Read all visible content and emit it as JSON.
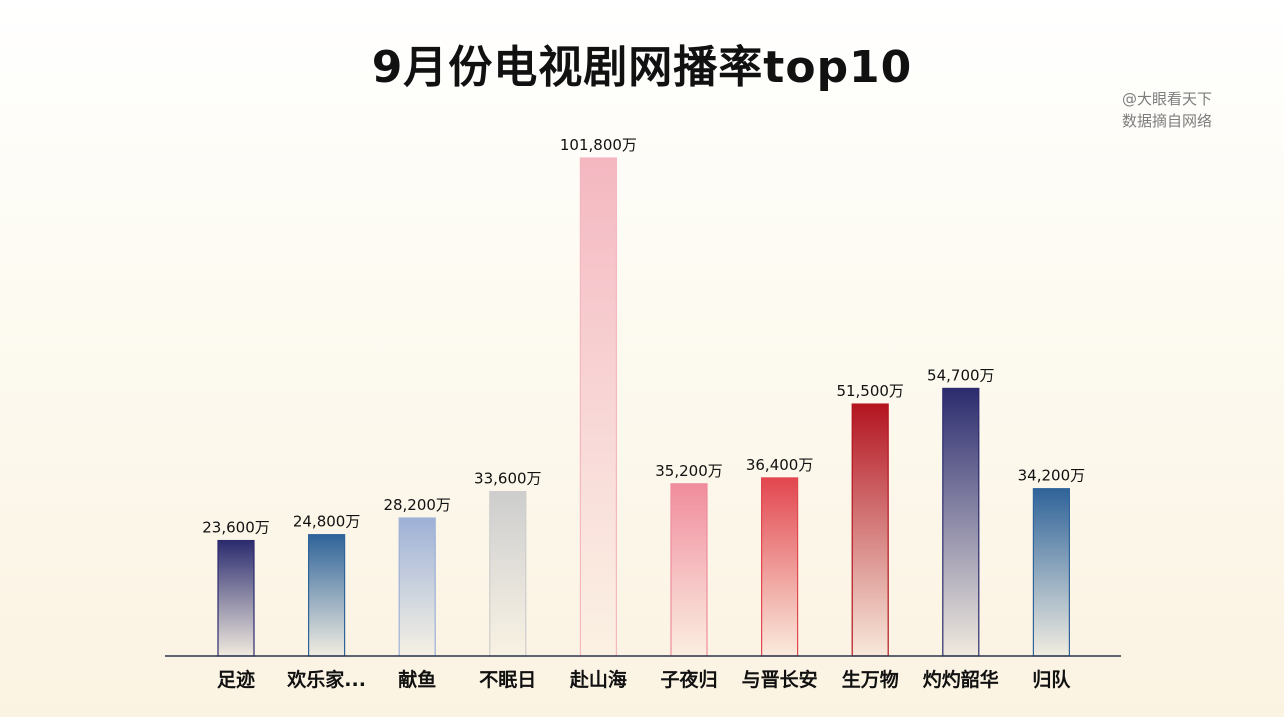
{
  "page": {
    "title": "9月份电视剧网播率top10",
    "source_line1": "@大眼看天下",
    "source_line2": "数据摘自网络"
  },
  "chart_data": {
    "type": "bar",
    "title": "9月份电视剧网播率top10",
    "xlabel": "",
    "ylabel": "",
    "ylim": [
      0,
      101800
    ],
    "grid": false,
    "legend": "none",
    "categories": [
      "足迹",
      "欢乐家...",
      "献鱼",
      "不眠日",
      "赴山海",
      "子夜归",
      "与晋长安",
      "生万物",
      "灼灼韶华",
      "归队"
    ],
    "values": [
      23600,
      24800,
      28200,
      33600,
      101800,
      35200,
      36400,
      51500,
      54700,
      34200
    ],
    "value_labels": [
      "23,600万",
      "24,800万",
      "28,200万",
      "33,600万",
      "101,800万",
      "35,200万",
      "36,400万",
      "51,500万",
      "54,700万",
      "34,200万"
    ],
    "unit": "万",
    "colors": [
      "#2b2b6e",
      "#2f6399",
      "#9db1d6",
      "#cdcdcd",
      "#f4b7c0",
      "#f08c9c",
      "#e2464e",
      "#b3141f",
      "#2b2b6e",
      "#2f6399"
    ],
    "axis_color": "#2a3450",
    "label_color": "#111111"
  }
}
